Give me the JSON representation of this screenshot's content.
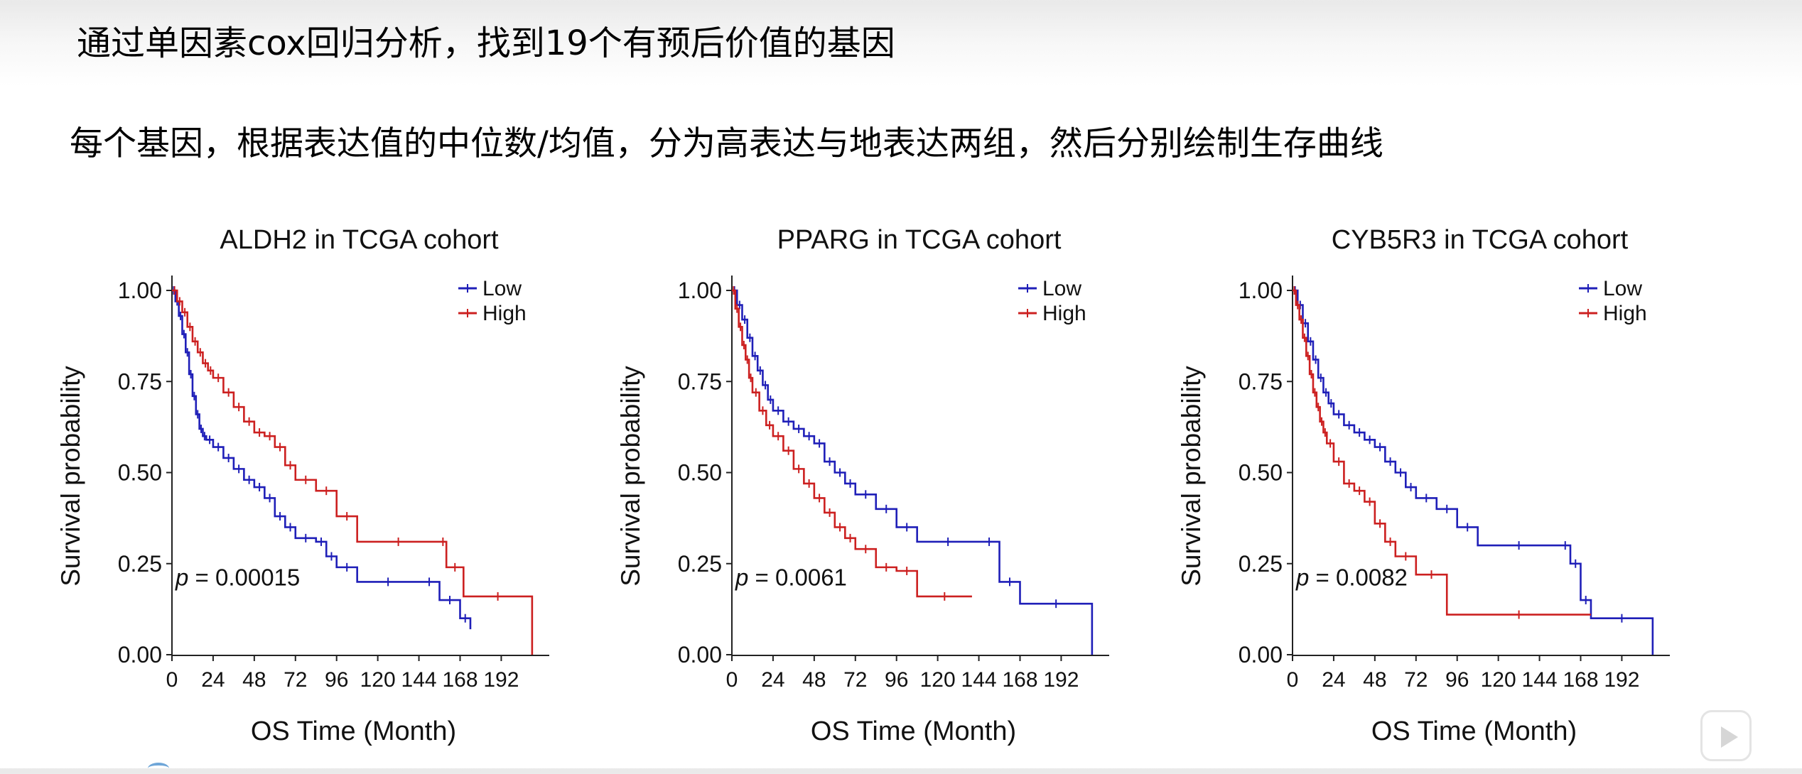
{
  "text": {
    "line1": "通过单因素cox回归分析，找到19个有预后价值的基因",
    "line2": "每个基因，根据表达值的中位数/均值，分为高表达与地表达两组，然后分别绘制生存曲线"
  },
  "colors": {
    "low": "#1f1fb8",
    "high": "#cc2020",
    "axis": "#222222"
  },
  "icons": {
    "play": "play-icon"
  },
  "chart_data": [
    {
      "type": "line",
      "title": "ALDH2 in TCGA cohort",
      "xlabel": "OS Time (Month)",
      "ylabel": "Survival probability",
      "xlim": [
        0,
        220
      ],
      "ylim": [
        0,
        1
      ],
      "xticks": [
        0,
        24,
        48,
        72,
        96,
        120,
        144,
        168,
        192
      ],
      "xtick_labels": [
        "0",
        "24",
        "48",
        "72",
        "96",
        "120",
        "144",
        "168",
        "192"
      ],
      "yticks": [
        0,
        0.25,
        0.5,
        0.75,
        1.0
      ],
      "ytick_labels": [
        "0.00",
        "0.25",
        "0.50",
        "0.75",
        "1.00"
      ],
      "pvalue_label": "p",
      "pvalue_text": " = 0.00015",
      "legend_position": "top-right",
      "grid": false,
      "series": [
        {
          "name": "Low",
          "color": "#1f1fb8",
          "x": [
            0,
            2,
            4,
            6,
            8,
            10,
            12,
            14,
            16,
            18,
            20,
            24,
            30,
            36,
            42,
            48,
            54,
            60,
            66,
            72,
            84,
            90,
            96,
            108,
            144,
            156,
            168,
            174
          ],
          "y": [
            1.0,
            0.97,
            0.93,
            0.88,
            0.83,
            0.77,
            0.71,
            0.66,
            0.62,
            0.6,
            0.59,
            0.57,
            0.54,
            0.51,
            0.48,
            0.46,
            0.43,
            0.38,
            0.35,
            0.32,
            0.31,
            0.27,
            0.24,
            0.2,
            0.2,
            0.15,
            0.1,
            0.07
          ]
        },
        {
          "name": "High",
          "color": "#cc2020",
          "x": [
            0,
            3,
            6,
            9,
            12,
            15,
            18,
            21,
            24,
            30,
            36,
            42,
            48,
            54,
            60,
            66,
            72,
            84,
            96,
            108,
            156,
            160,
            170,
            210
          ],
          "y": [
            1.0,
            0.97,
            0.94,
            0.9,
            0.86,
            0.83,
            0.8,
            0.78,
            0.76,
            0.72,
            0.68,
            0.64,
            0.61,
            0.6,
            0.57,
            0.52,
            0.48,
            0.45,
            0.38,
            0.31,
            0.31,
            0.24,
            0.16,
            0.0
          ]
        }
      ]
    },
    {
      "type": "line",
      "title": "PPARG in TCGA cohort",
      "xlabel": "OS Time (Month)",
      "ylabel": "Survival probability",
      "xlim": [
        0,
        220
      ],
      "ylim": [
        0,
        1
      ],
      "xticks": [
        0,
        24,
        48,
        72,
        96,
        120,
        144,
        168,
        192
      ],
      "xtick_labels": [
        "0",
        "24",
        "48",
        "72",
        "96",
        "120",
        "144",
        "168",
        "192"
      ],
      "yticks": [
        0,
        0.25,
        0.5,
        0.75,
        1.0
      ],
      "ytick_labels": [
        "0.00",
        "0.25",
        "0.50",
        "0.75",
        "1.00"
      ],
      "pvalue_label": "p",
      "pvalue_text": " = 0.0061",
      "legend_position": "top-right",
      "grid": false,
      "series": [
        {
          "name": "Low",
          "color": "#1f1fb8",
          "x": [
            0,
            3,
            6,
            9,
            12,
            15,
            18,
            21,
            24,
            30,
            36,
            42,
            48,
            54,
            60,
            66,
            72,
            84,
            96,
            108,
            144,
            156,
            168,
            210
          ],
          "y": [
            1.0,
            0.96,
            0.92,
            0.87,
            0.82,
            0.78,
            0.74,
            0.7,
            0.67,
            0.64,
            0.62,
            0.6,
            0.58,
            0.53,
            0.5,
            0.47,
            0.44,
            0.4,
            0.35,
            0.31,
            0.31,
            0.2,
            0.14,
            0.0
          ]
        },
        {
          "name": "High",
          "color": "#cc2020",
          "x": [
            0,
            2,
            4,
            6,
            8,
            10,
            12,
            16,
            20,
            24,
            30,
            36,
            42,
            48,
            54,
            60,
            66,
            72,
            84,
            96,
            108,
            140
          ],
          "y": [
            1.0,
            0.95,
            0.9,
            0.85,
            0.81,
            0.76,
            0.72,
            0.67,
            0.63,
            0.6,
            0.56,
            0.51,
            0.47,
            0.43,
            0.39,
            0.35,
            0.32,
            0.29,
            0.24,
            0.23,
            0.16,
            0.16
          ]
        }
      ]
    },
    {
      "type": "line",
      "title": "CYB5R3 in TCGA cohort",
      "xlabel": "OS Time (Month)",
      "ylabel": "Survival probability",
      "xlim": [
        0,
        220
      ],
      "ylim": [
        0,
        1
      ],
      "xticks": [
        0,
        24,
        48,
        72,
        96,
        120,
        144,
        168,
        192
      ],
      "xtick_labels": [
        "0",
        "24",
        "48",
        "72",
        "96",
        "120",
        "144",
        "168",
        "192"
      ],
      "yticks": [
        0,
        0.25,
        0.5,
        0.75,
        1.0
      ],
      "ytick_labels": [
        "0.00",
        "0.25",
        "0.50",
        "0.75",
        "1.00"
      ],
      "pvalue_label": "p",
      "pvalue_text": " = 0.0082",
      "legend_position": "top-right",
      "grid": false,
      "series": [
        {
          "name": "Low",
          "color": "#1f1fb8",
          "x": [
            0,
            3,
            6,
            9,
            12,
            15,
            18,
            21,
            24,
            30,
            36,
            42,
            48,
            54,
            60,
            66,
            72,
            84,
            96,
            108,
            156,
            162,
            168,
            174,
            210
          ],
          "y": [
            1.0,
            0.96,
            0.91,
            0.86,
            0.81,
            0.76,
            0.72,
            0.69,
            0.66,
            0.63,
            0.61,
            0.59,
            0.57,
            0.53,
            0.5,
            0.46,
            0.43,
            0.4,
            0.35,
            0.3,
            0.3,
            0.25,
            0.15,
            0.1,
            0.0
          ]
        },
        {
          "name": "High",
          "color": "#cc2020",
          "x": [
            0,
            2,
            4,
            6,
            8,
            10,
            12,
            14,
            16,
            18,
            20,
            24,
            30,
            36,
            42,
            48,
            54,
            60,
            72,
            90,
            174
          ],
          "y": [
            1.0,
            0.96,
            0.92,
            0.87,
            0.82,
            0.77,
            0.72,
            0.68,
            0.64,
            0.61,
            0.58,
            0.53,
            0.47,
            0.45,
            0.42,
            0.36,
            0.31,
            0.27,
            0.22,
            0.11,
            0.11
          ]
        }
      ]
    }
  ]
}
